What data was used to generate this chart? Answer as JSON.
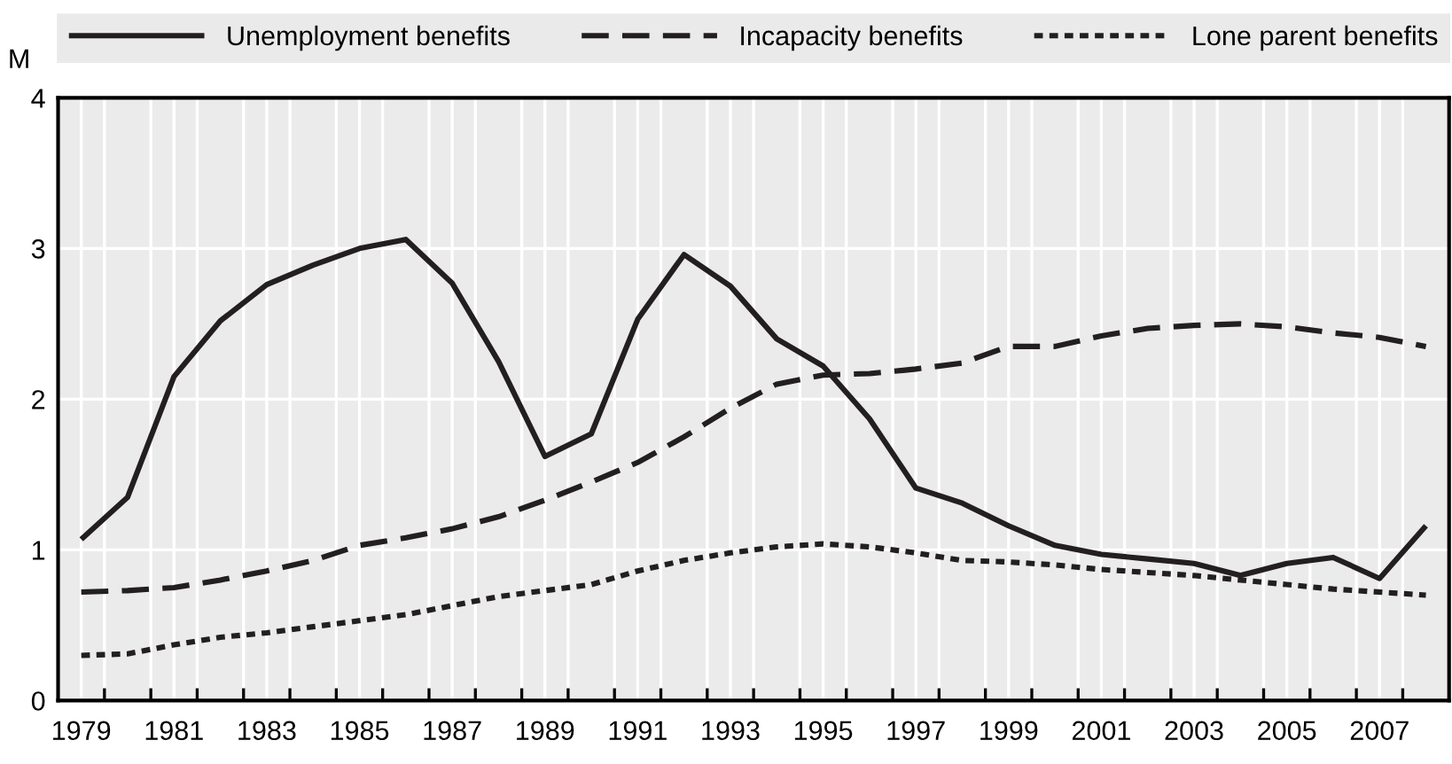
{
  "chart_data": {
    "type": "line",
    "ylabel": "M",
    "x": [
      1979,
      1980,
      1981,
      1982,
      1983,
      1984,
      1985,
      1986,
      1987,
      1988,
      1989,
      1990,
      1991,
      1992,
      1993,
      1994,
      1995,
      1996,
      1997,
      1998,
      1999,
      2000,
      2001,
      2002,
      2003,
      2004,
      2005,
      2006,
      2007,
      2008
    ],
    "series": [
      {
        "name": "Unemployment benefits",
        "color": "#231f20",
        "line_style": "solid",
        "values": [
          1.07,
          1.35,
          2.15,
          2.52,
          2.76,
          2.89,
          3.0,
          3.06,
          2.77,
          2.25,
          1.62,
          1.77,
          2.53,
          2.96,
          2.75,
          2.4,
          2.22,
          1.87,
          1.41,
          1.31,
          1.16,
          1.03,
          0.97,
          0.94,
          0.91,
          0.83,
          0.91,
          0.95,
          0.81,
          1.16
        ]
      },
      {
        "name": "Incapacity benefits",
        "color": "#231f20",
        "line_style": "dashed",
        "values": [
          0.72,
          0.73,
          0.75,
          0.8,
          0.86,
          0.93,
          1.03,
          1.08,
          1.14,
          1.22,
          1.33,
          1.45,
          1.58,
          1.75,
          1.94,
          2.1,
          2.16,
          2.17,
          2.2,
          2.24,
          2.35,
          2.35,
          2.42,
          2.47,
          2.49,
          2.5,
          2.48,
          2.44,
          2.41,
          2.35
        ]
      },
      {
        "name": "Lone parent benefits",
        "color": "#231f20",
        "line_style": "dotted",
        "values": [
          0.3,
          0.31,
          0.37,
          0.42,
          0.45,
          0.49,
          0.53,
          0.57,
          0.63,
          0.69,
          0.73,
          0.77,
          0.86,
          0.93,
          0.98,
          1.02,
          1.04,
          1.02,
          0.98,
          0.93,
          0.92,
          0.9,
          0.87,
          0.85,
          0.83,
          0.8,
          0.77,
          0.74,
          0.72,
          0.7
        ]
      }
    ],
    "xlim": [
      1978.5,
      2008.5
    ],
    "xticks": [
      1979,
      1981,
      1983,
      1985,
      1987,
      1989,
      1991,
      1993,
      1995,
      1997,
      1999,
      2001,
      2003,
      2005,
      2007,
      {
        "value": 1979.5,
        "label": null
      },
      {
        "value": 1980.5,
        "label": null
      },
      {
        "value": 1981.5,
        "label": null
      },
      {
        "value": 1982.5,
        "label": null
      },
      {
        "value": 1983.5,
        "label": null
      },
      {
        "value": 1984.5,
        "label": null
      },
      {
        "value": 1985.5,
        "label": null
      },
      {
        "value": 1986.5,
        "label": null
      },
      {
        "value": 1987.5,
        "label": null
      },
      {
        "value": 1988.5,
        "label": null
      },
      {
        "value": 1989.5,
        "label": null
      },
      {
        "value": 1990.5,
        "label": null
      },
      {
        "value": 1991.5,
        "label": null
      },
      {
        "value": 1992.5,
        "label": null
      },
      {
        "value": 1993.5,
        "label": null
      },
      {
        "value": 1994.5,
        "label": null
      },
      {
        "value": 1995.5,
        "label": null
      },
      {
        "value": 1996.5,
        "label": null
      },
      {
        "value": 1997.5,
        "label": null
      },
      {
        "value": 1998.5,
        "label": null
      },
      {
        "value": 1999.5,
        "label": null
      },
      {
        "value": 2000.5,
        "label": null
      },
      {
        "value": 2001.5,
        "label": null
      },
      {
        "value": 2002.5,
        "label": null
      },
      {
        "value": 2003.5,
        "label": null
      },
      {
        "value": 2004.5,
        "label": null
      },
      {
        "value": 2005.5,
        "label": null
      },
      {
        "value": 2006.5,
        "label": null
      },
      {
        "value": 2007.5,
        "label": null
      }
    ],
    "ylim": [
      0,
      4
    ],
    "yticks": [
      0,
      1,
      2,
      3,
      4
    ],
    "grid": true,
    "legend": "top",
    "marker": "none"
  }
}
